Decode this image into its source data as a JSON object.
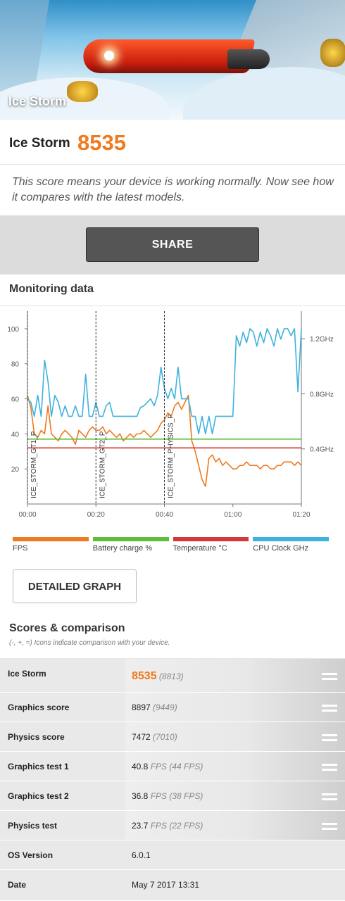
{
  "banner": {
    "title": "Ice Storm"
  },
  "score": {
    "name": "Ice Storm",
    "value": "8535",
    "description": "This score means your device is working normally. Now see how it compares with the latest models."
  },
  "share": {
    "label": "SHARE"
  },
  "monitoring": {
    "title": "Monitoring data",
    "detailed_button": "DETAILED GRAPH"
  },
  "chart_data": {
    "type": "line",
    "x_unit": "time (mm:ss)",
    "x_ticks": [
      "00:00",
      "00:20",
      "00:40",
      "01:00",
      "01:20"
    ],
    "xlim": [
      0,
      80
    ],
    "y_ticks_left": [
      "20",
      "40",
      "60",
      "80",
      "100"
    ],
    "ylim_left": [
      0,
      110
    ],
    "y_ticks_right": [
      "0.4GHz",
      "0.8GHz",
      "1.2GHz"
    ],
    "ylim_right": [
      0,
      1.4
    ],
    "markers": [
      {
        "label": "ICE_STORM_GT1_P",
        "x": 0
      },
      {
        "label": "ICE_STORM_GT2_P",
        "x": 20
      },
      {
        "label": "ICE_STORM_PHYSICS_P",
        "x": 40
      }
    ],
    "series": [
      {
        "name": "FPS",
        "color": "#ef7a1f",
        "axis": "left",
        "x": [
          0,
          1,
          2,
          3,
          4,
          5,
          6,
          7,
          8,
          9,
          10,
          11,
          12,
          13,
          14,
          15,
          16,
          17,
          18,
          19,
          20,
          21,
          22,
          23,
          24,
          25,
          26,
          27,
          28,
          29,
          30,
          31,
          32,
          33,
          34,
          35,
          36,
          37,
          38,
          39,
          40,
          41,
          42,
          43,
          44,
          45,
          46,
          47,
          48,
          49,
          50,
          51,
          52,
          53,
          54,
          55,
          56,
          57,
          58,
          59,
          60,
          61,
          62,
          63,
          64,
          65,
          66,
          67,
          68,
          69,
          70,
          71,
          72,
          73,
          74,
          75,
          76,
          77,
          78,
          79,
          80
        ],
        "values": [
          62,
          55,
          40,
          38,
          42,
          40,
          56,
          40,
          38,
          36,
          40,
          42,
          40,
          38,
          34,
          42,
          40,
          38,
          42,
          44,
          42,
          42,
          44,
          40,
          42,
          40,
          38,
          40,
          36,
          38,
          40,
          38,
          40,
          40,
          42,
          40,
          38,
          40,
          42,
          46,
          48,
          52,
          50,
          56,
          58,
          54,
          58,
          62,
          36,
          30,
          22,
          14,
          10,
          26,
          28,
          24,
          26,
          22,
          24,
          22,
          20,
          20,
          22,
          22,
          24,
          22,
          22,
          22,
          20,
          22,
          22,
          20,
          20,
          22,
          22,
          24,
          24,
          24,
          22,
          24,
          22
        ],
        "ignore_len": true
      },
      {
        "name": "Battery charge %",
        "color": "#5fbd3c",
        "axis": "left",
        "x": [
          0,
          80
        ],
        "values": [
          37,
          37
        ]
      },
      {
        "name": "Temperature °C",
        "color": "#d23a3a",
        "axis": "left",
        "x": [
          0,
          80
        ],
        "values": [
          32,
          32
        ]
      },
      {
        "name": "CPU Clock GHz",
        "color": "#3fb2de",
        "axis": "left_scaled",
        "x": [
          0,
          1,
          2,
          3,
          4,
          5,
          6,
          7,
          8,
          9,
          10,
          11,
          12,
          13,
          14,
          15,
          16,
          17,
          18,
          19,
          20,
          21,
          22,
          23,
          24,
          25,
          26,
          27,
          28,
          29,
          30,
          31,
          32,
          33,
          34,
          35,
          36,
          37,
          38,
          39,
          40,
          41,
          42,
          43,
          44,
          45,
          46,
          47,
          48,
          49,
          50,
          51,
          52,
          53,
          54,
          55,
          56,
          57,
          58,
          59,
          60,
          61,
          62,
          63,
          64,
          65,
          66,
          67,
          68,
          69,
          70,
          71,
          72,
          73,
          74,
          75,
          76,
          77,
          78,
          79,
          80
        ],
        "values": [
          60,
          58,
          50,
          62,
          50,
          82,
          70,
          50,
          62,
          58,
          50,
          56,
          50,
          50,
          56,
          50,
          50,
          74,
          50,
          50,
          58,
          50,
          50,
          56,
          58,
          50,
          50,
          50,
          50,
          50,
          50,
          50,
          50,
          55,
          56,
          58,
          60,
          56,
          62,
          78,
          66,
          60,
          66,
          60,
          78,
          60,
          60,
          60,
          50,
          50,
          40,
          50,
          40,
          50,
          40,
          50,
          50,
          50,
          50,
          50,
          50,
          96,
          90,
          98,
          92,
          100,
          98,
          90,
          98,
          92,
          100,
          96,
          90,
          100,
          94,
          100,
          100,
          96,
          100,
          64,
          100
        ]
      }
    ]
  },
  "legend": [
    {
      "label": "FPS",
      "color": "#ef7a1f"
    },
    {
      "label": "Battery charge %",
      "color": "#5fbd3c"
    },
    {
      "label": "Temperature °C",
      "color": "#d23a3a"
    },
    {
      "label": "CPU Clock GHz",
      "color": "#3fb2de"
    }
  ],
  "scores_section": {
    "title": "Scores & comparison",
    "subtitle": "(-, +, =) Icons indicate comparison with your device."
  },
  "table": {
    "rows": [
      {
        "label": "Ice Storm",
        "value": "8535",
        "compare": "(8813)",
        "unit": "",
        "unit_cmp": "",
        "icon": "equal-icon"
      },
      {
        "label": "Graphics score",
        "value": "8897",
        "compare": "(9449)",
        "unit": "",
        "unit_cmp": "",
        "icon": "equal-icon"
      },
      {
        "label": "Physics score",
        "value": "7472",
        "compare": "(7010)",
        "unit": "",
        "unit_cmp": "",
        "icon": "equal-icon"
      },
      {
        "label": "Graphics test 1",
        "value": "40.8",
        "compare": "(44 FPS)",
        "unit": "FPS",
        "icon": "equal-icon"
      },
      {
        "label": "Graphics test 2",
        "value": "36.8",
        "compare": "(38 FPS)",
        "unit": "FPS",
        "icon": "equal-icon"
      },
      {
        "label": "Physics test",
        "value": "23.7",
        "compare": "(22 FPS)",
        "unit": "FPS",
        "icon": "equal-icon"
      },
      {
        "label": "OS Version",
        "value": "6.0.1"
      },
      {
        "label": "Date",
        "value": "May 7 2017 13:31"
      }
    ]
  }
}
